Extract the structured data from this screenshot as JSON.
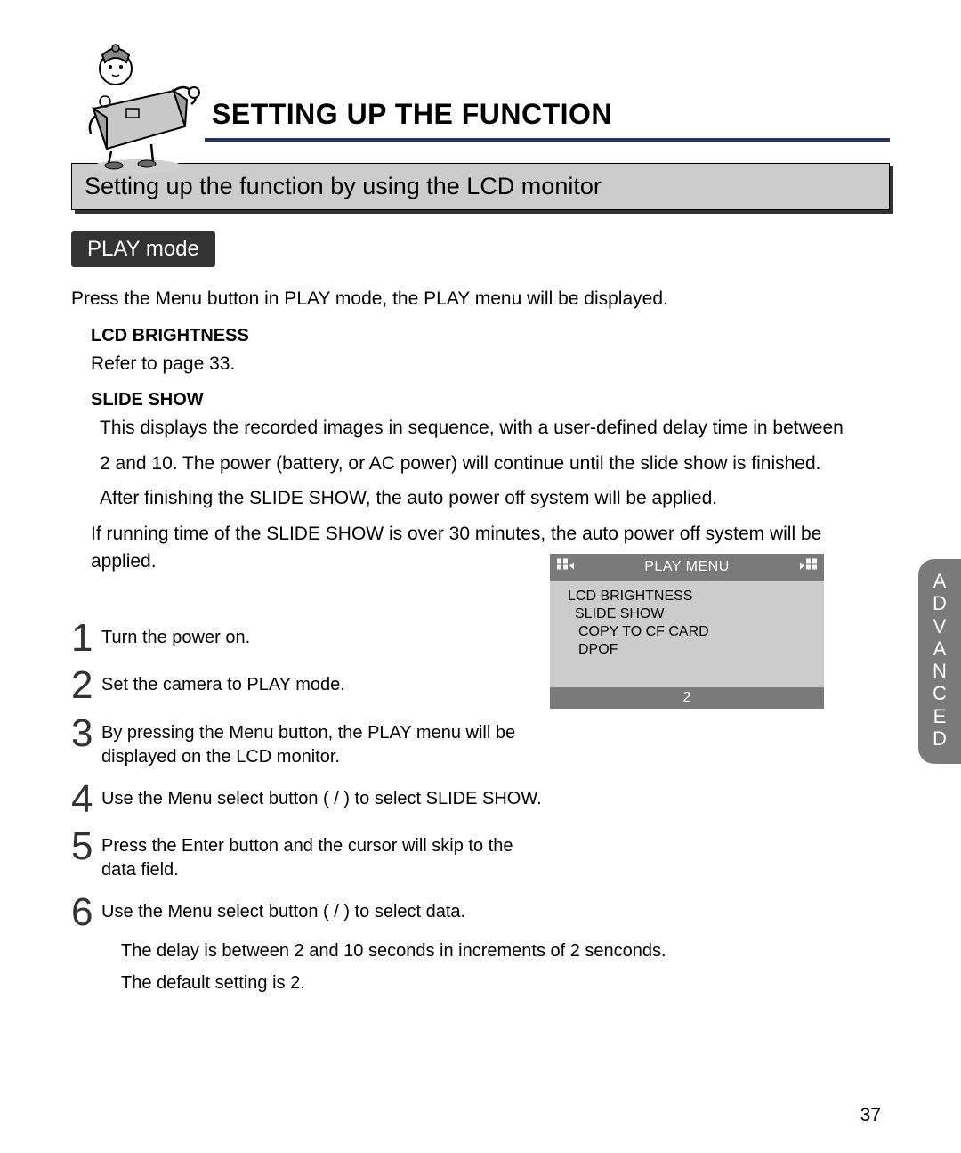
{
  "header": {
    "main_title": "SETTING UP THE FUNCTION",
    "subtitle": "Setting up the function by using the LCD monitor",
    "underline_color": "#24327a"
  },
  "mode_label": "PLAY mode",
  "intro_text": "Press the Menu button in PLAY mode, the PLAY menu will be displayed.",
  "sections": {
    "lcd_brightness": {
      "heading": "LCD BRIGHTNESS",
      "text": "Refer to page 33."
    },
    "slide_show": {
      "heading": "SLIDE SHOW",
      "line1": "This displays the recorded images in sequence, with a user-defined delay time in between",
      "line2": "2 and 10. The power (battery, or AC power) will continue until the slide show is finished.",
      "line3": "After finishing the SLIDE SHOW, the auto power off system will be applied.",
      "line4": "If running time of the SLIDE SHOW is over 30 minutes, the auto power off system will be applied."
    }
  },
  "steps": [
    {
      "num": "1",
      "text": "Turn the power on."
    },
    {
      "num": "2",
      "text": "Set the camera to PLAY mode."
    },
    {
      "num": "3",
      "text": "By pressing the Menu button, the PLAY menu will be displayed on the LCD monitor."
    },
    {
      "num": "4",
      "text": "Use the Menu select button (   /   ) to select SLIDE SHOW."
    },
    {
      "num": "5",
      "text": "Press the Enter button and the cursor will skip to the data field."
    },
    {
      "num": "6",
      "text": "Use the Menu select button (   /   ) to select data."
    }
  ],
  "step6_details": {
    "line1": "The delay is between 2 and 10 seconds in increments of 2 senconds.",
    "line2": "The default setting is 2."
  },
  "menu_panel": {
    "title": "PLAY MENU",
    "items": [
      "LCD BRIGHTNESS",
      "SLIDE SHOW",
      "COPY TO CF CARD",
      "DPOF"
    ],
    "footer_value": "2",
    "header_bg": "#7a7a7a",
    "body_bg": "#cccccc"
  },
  "side_tab": "ADVANCED",
  "page_number": "37"
}
